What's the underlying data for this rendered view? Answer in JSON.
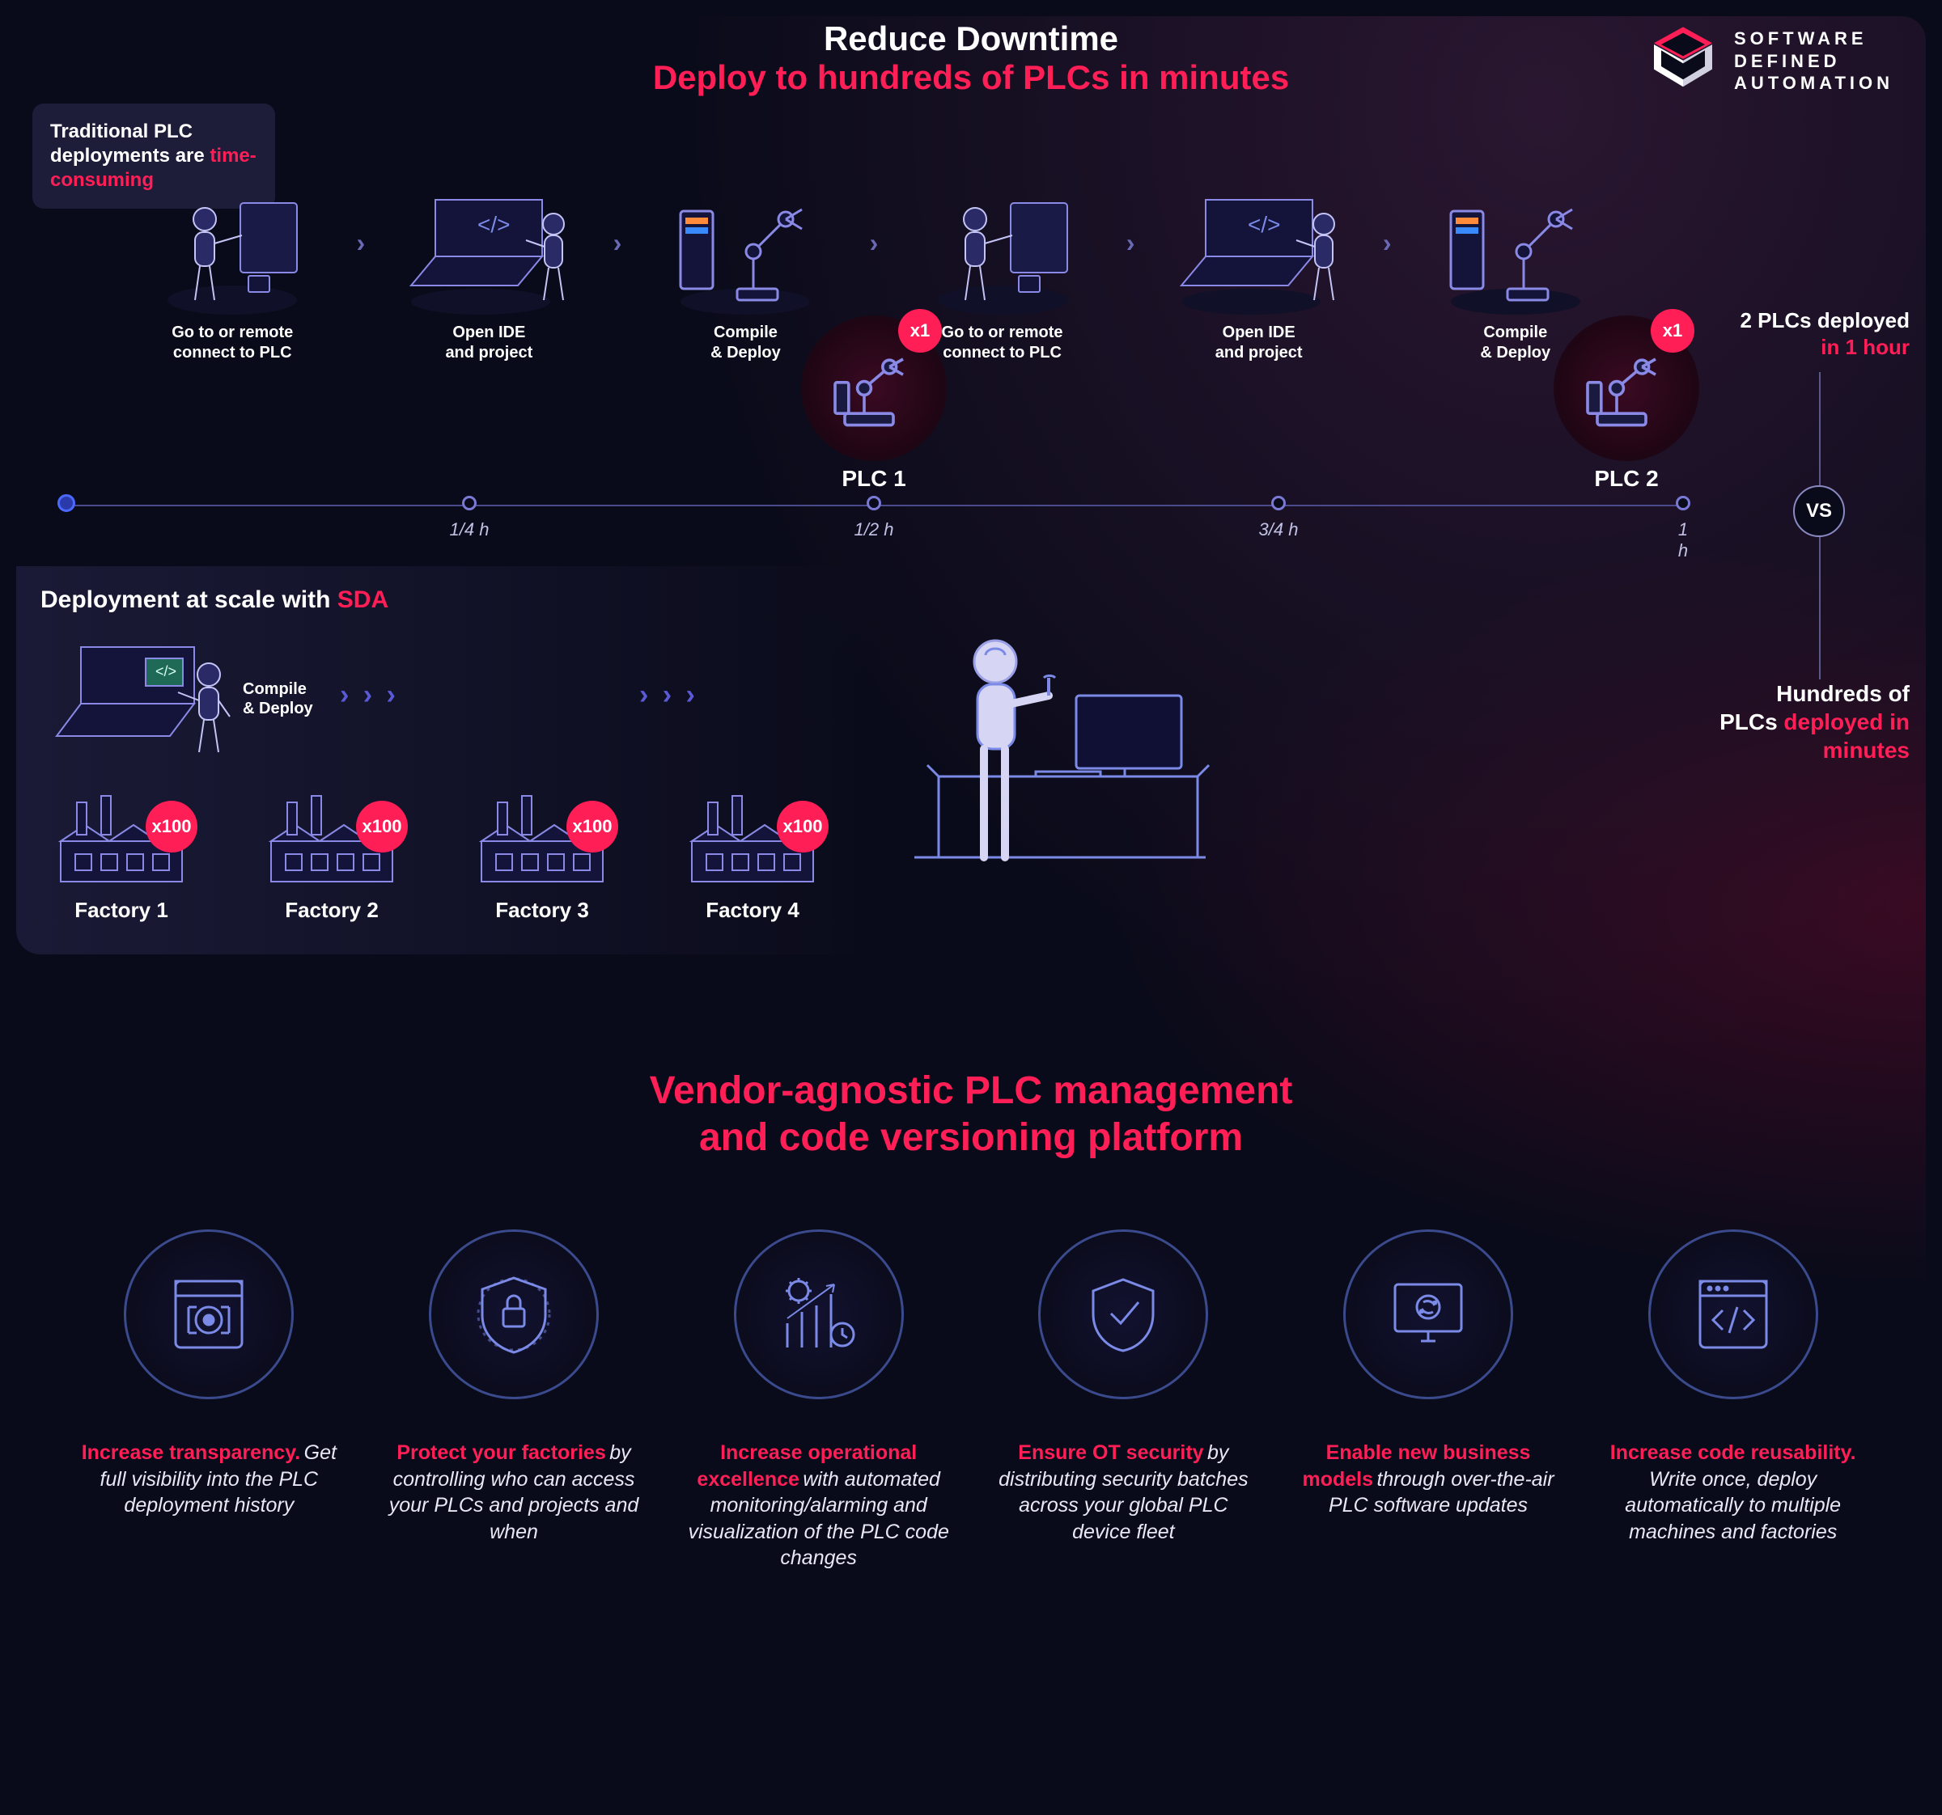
{
  "colors": {
    "accent": "#ff1e56",
    "accent2": "#ff3a6a",
    "bg": "#0a0b1a",
    "line": "#5a5ad6",
    "ring": "#3a4a8c",
    "text": "#ffffff",
    "muted": "#c2c2e6"
  },
  "header": {
    "line1": "Reduce Downtime",
    "line2": "Deploy to hundreds of PLCs in minutes"
  },
  "logo": {
    "line1": "SOFTWARE",
    "line2": "DEFINED",
    "line3": "AUTOMATION"
  },
  "traditional": {
    "label_pre": "Traditional PLC deployments are",
    "label_hl": "time-consuming",
    "steps": [
      {
        "caption": "Go to or remote\nconnect to PLC"
      },
      {
        "caption": "Open IDE\nand project"
      },
      {
        "caption": "Compile\n& Deploy"
      },
      {
        "caption": "Go to or remote\nconnect to PLC"
      },
      {
        "caption": "Open IDE\nand project"
      },
      {
        "caption": "Compile\n& Deploy"
      }
    ],
    "plc1": {
      "badge": "x1",
      "label": "PLC 1"
    },
    "plc2": {
      "badge": "x1",
      "label": "PLC 2"
    },
    "result_a": "2 PLCs deployed",
    "result_b": "in 1 hour"
  },
  "timeline": {
    "ticks": [
      {
        "pos": 0,
        "label": "",
        "big": true
      },
      {
        "pos": 0.25,
        "label": "1/4 h",
        "big": false
      },
      {
        "pos": 0.5,
        "label": "1/2 h",
        "big": false
      },
      {
        "pos": 0.75,
        "label": "3/4 h",
        "big": false
      },
      {
        "pos": 1.0,
        "label": "1 h",
        "big": false
      }
    ],
    "vs": "VS"
  },
  "sda": {
    "label_pre": "Deployment at scale with",
    "label_hl": "SDA",
    "compile": "Compile\n& Deploy",
    "factories": [
      {
        "badge": "x100",
        "label": "Factory 1"
      },
      {
        "badge": "x100",
        "label": "Factory 2"
      },
      {
        "badge": "x100",
        "label": "Factory 3"
      },
      {
        "badge": "x100",
        "label": "Factory 4"
      }
    ],
    "result_a": "Hundreds of PLCs",
    "result_b": "deployed in minutes"
  },
  "section2": {
    "line1": "Vendor-agnostic PLC management",
    "line2": "and code versioning platform"
  },
  "benefits": [
    {
      "icon": "transparency-icon",
      "title": "Increase transparency.",
      "desc": "Get full visibility into the PLC deployment history"
    },
    {
      "icon": "protect-icon",
      "title_a": "Protect your",
      "title_b": "factories",
      "desc": "by controlling who can access your PLCs and projects and when"
    },
    {
      "icon": "excellence-icon",
      "title_a": "Increase operational",
      "title_b": "excellence",
      "desc": "with automated monitoring/alarming and visualization of the PLC code changes"
    },
    {
      "icon": "security-icon",
      "title": "Ensure OT security",
      "desc": "by distributing security batches across your global PLC device fleet"
    },
    {
      "icon": "business-icon",
      "title_a": "Enable new",
      "title_b": "business models",
      "desc": "through over-the-air PLC software updates"
    },
    {
      "icon": "reuse-icon",
      "title": "Increase code reusability.",
      "desc": "Write once, deploy automatically to multiple machines and factories"
    }
  ]
}
